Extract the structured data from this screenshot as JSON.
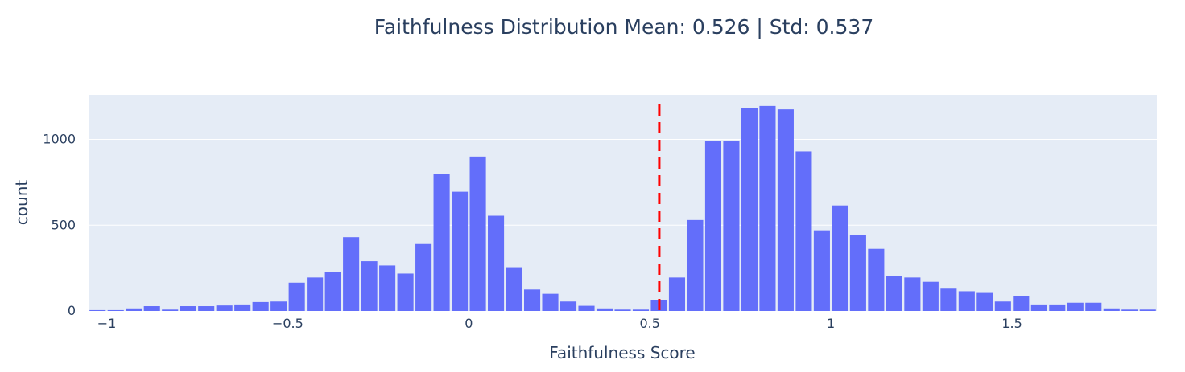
{
  "chart_data": {
    "type": "bar",
    "title": "Faithfulness Distribution Mean: 0.526 | Std: 0.537",
    "xlabel": "Faithfulness Score",
    "ylabel": "count",
    "xlim": [
      -1.05,
      1.9
    ],
    "ylim": [
      0,
      1260
    ],
    "bin_width": 0.05,
    "bin_start": -1.05,
    "x_ticks": [
      {
        "value": -1,
        "label": "−1"
      },
      {
        "value": -0.5,
        "label": "−0.5"
      },
      {
        "value": 0,
        "label": "0"
      },
      {
        "value": 0.5,
        "label": "0.5"
      },
      {
        "value": 1,
        "label": "1"
      },
      {
        "value": 1.5,
        "label": "1.5"
      }
    ],
    "y_ticks": [
      {
        "value": 0,
        "label": "0"
      },
      {
        "value": 500,
        "label": "500"
      },
      {
        "value": 1000,
        "label": "1000"
      }
    ],
    "values": [
      5,
      5,
      15,
      28,
      8,
      28,
      28,
      32,
      38,
      52,
      55,
      165,
      195,
      228,
      430,
      290,
      265,
      218,
      390,
      800,
      695,
      900,
      555,
      255,
      125,
      100,
      55,
      30,
      15,
      8,
      8,
      65,
      195,
      530,
      990,
      990,
      1185,
      1195,
      1175,
      930,
      470,
      615,
      445,
      362,
      205,
      195,
      170,
      130,
      115,
      105,
      55,
      85,
      38,
      38,
      48,
      48,
      15,
      8,
      8
    ],
    "mean_line": {
      "x": 0.526,
      "color": "#ff0000",
      "style": "dashed"
    },
    "colors": {
      "bar": "#636efa",
      "plot_bg": "#e5ecf6",
      "grid": "#ffffff",
      "text": "#2a3f5f"
    },
    "grid": true,
    "legend": "none"
  }
}
